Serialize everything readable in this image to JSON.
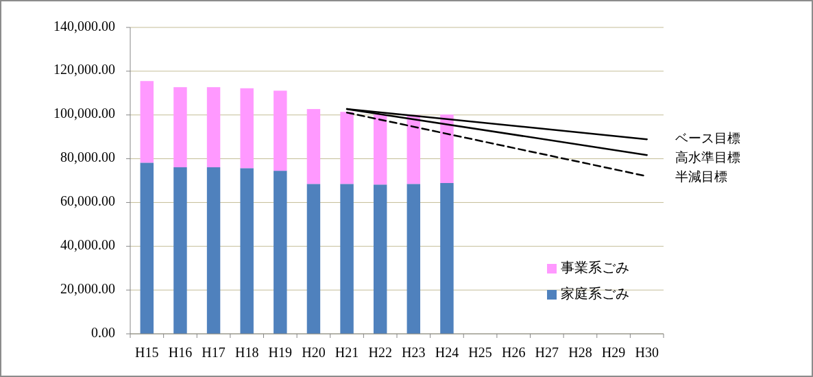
{
  "chart_data": {
    "type": "bar",
    "stacked": true,
    "categories": [
      "H15",
      "H16",
      "H17",
      "H18",
      "H19",
      "H20",
      "H21",
      "H22",
      "H23",
      "H24",
      "H25",
      "H26",
      "H27",
      "H28",
      "H29",
      "H30"
    ],
    "series": [
      {
        "name": "家庭系ごみ",
        "color": "#4f81bd",
        "values": [
          78200,
          76100,
          76100,
          75700,
          74500,
          68500,
          68500,
          68200,
          68500,
          68900,
          null,
          null,
          null,
          null,
          null,
          null
        ]
      },
      {
        "name": "事業系ごみ",
        "color": "#ff99ff",
        "values": [
          37300,
          36600,
          36600,
          36500,
          36600,
          34200,
          32900,
          32000,
          31500,
          31300,
          null,
          null,
          null,
          null,
          null,
          null
        ]
      },
      {
        "name": "ベース目標",
        "type": "line",
        "color": "#000000",
        "line_style": "solid",
        "x": [
          "H21",
          "H30"
        ],
        "values": [
          102700,
          88900
        ]
      },
      {
        "name": "高水準目標",
        "type": "line",
        "color": "#000000",
        "line_style": "solid",
        "x": [
          "H21",
          "H30"
        ],
        "values": [
          102700,
          81700
        ]
      },
      {
        "name": "半減目標",
        "type": "line",
        "color": "#000000",
        "line_style": "dashed",
        "x": [
          "H21",
          "H30"
        ],
        "values": [
          101100,
          72000
        ]
      }
    ],
    "ylim": [
      0,
      140000
    ],
    "yticks": [
      {
        "value": 0,
        "label": "0.00"
      },
      {
        "value": 20000,
        "label": "20,000.00"
      },
      {
        "value": 40000,
        "label": "40,000.00"
      },
      {
        "value": 60000,
        "label": "60,000.00"
      },
      {
        "value": 80000,
        "label": "80,000.00"
      },
      {
        "value": 100000,
        "label": "100,000.00"
      },
      {
        "value": 120000,
        "label": "120,000.00"
      },
      {
        "value": 140000,
        "label": "140,000.00"
      }
    ],
    "grid": "y",
    "legend": "bottom right"
  }
}
